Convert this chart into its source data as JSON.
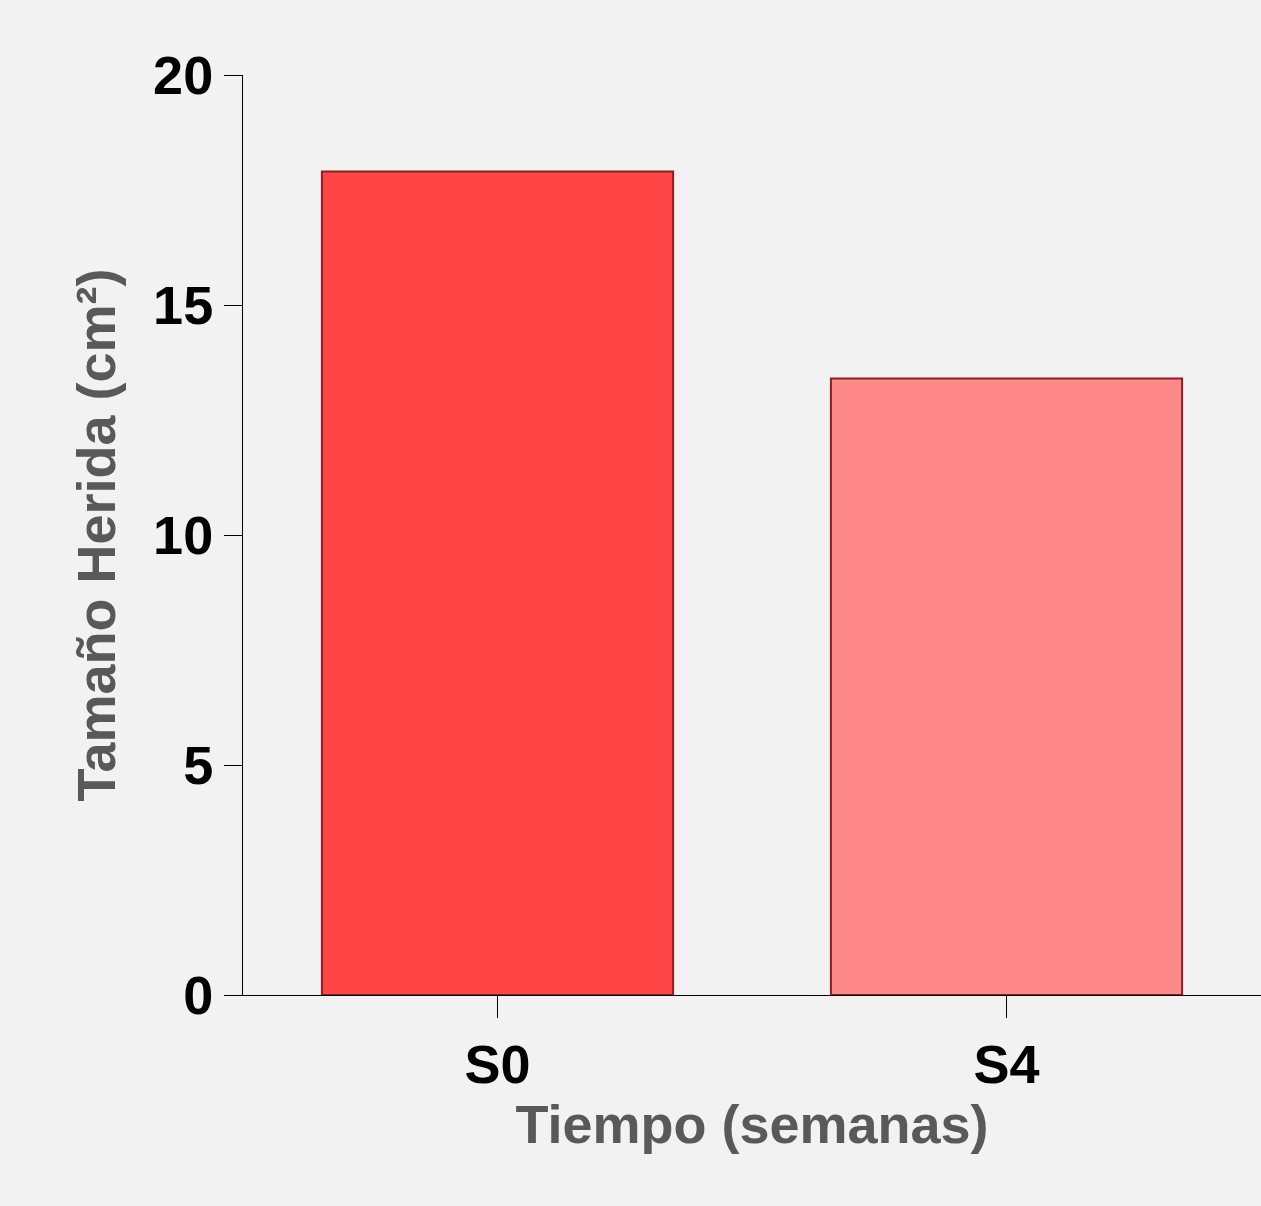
{
  "chart_data": {
    "type": "bar",
    "xlabel": "Tiempo (semanas)",
    "ylabel": "Tamaño Herida (cm²)",
    "categories": [
      "S0",
      "S4"
    ],
    "values": [
      17.9,
      13.4
    ],
    "colors": [
      "#ff4545",
      "#ff8888"
    ],
    "ylim": [
      0,
      20
    ],
    "yticks": [
      0,
      5,
      10,
      15,
      20
    ],
    "grid": false
  }
}
